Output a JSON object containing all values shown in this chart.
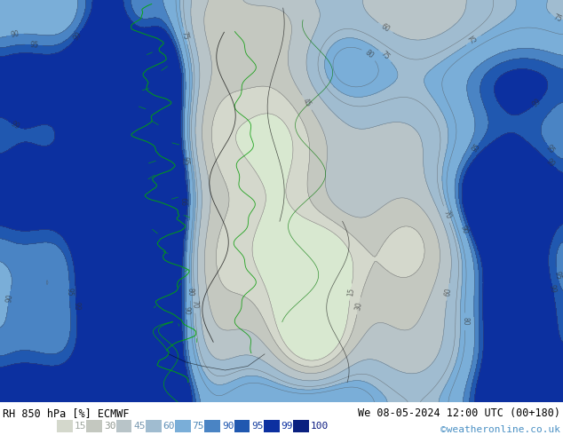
{
  "title_left": "RH 850 hPa [%] ECMWF",
  "title_right": "We 08-05-2024 12:00 UTC (00+180)",
  "watermark": "©weatheronline.co.uk",
  "colorbar_levels": [
    15,
    30,
    45,
    60,
    75,
    90,
    95,
    99,
    100
  ],
  "fill_colors": [
    "#e8e8e0",
    "#d0d0c8",
    "#c0c0b8",
    "#b8d0c0",
    "#a0c8d8",
    "#6aacd8",
    "#3a7cc8",
    "#1a50b0",
    "#0c2e90"
  ],
  "bg_color": "#ffffff",
  "title_color": "#000000",
  "watermark_color": "#4a90c4",
  "figsize": [
    6.34,
    4.9
  ],
  "dpi": 100
}
